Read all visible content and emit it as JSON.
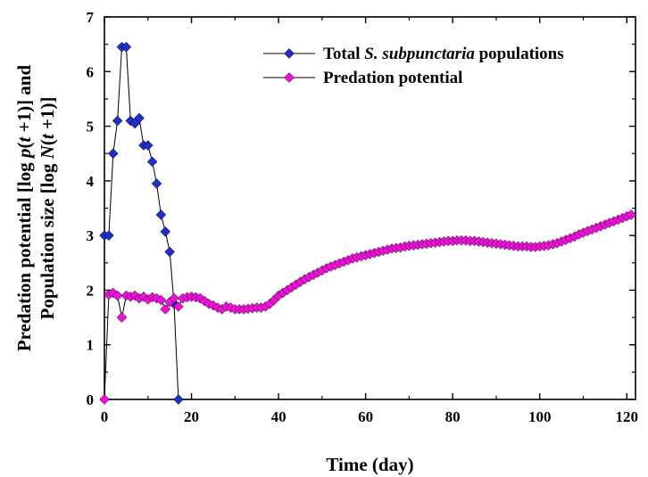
{
  "chart_data": {
    "type": "line",
    "xlabel": "Time (day)",
    "ylabel_line1": [
      "Predation potential [log ",
      "p",
      "(",
      "t",
      " +1)] and"
    ],
    "ylabel_line2": [
      "Population size [log ",
      "N",
      "(",
      "t",
      " +1)]"
    ],
    "xlim": [
      0,
      122
    ],
    "ylim": [
      0,
      7
    ],
    "x_ticks": [
      0,
      20,
      40,
      60,
      80,
      100,
      120
    ],
    "y_ticks": [
      0,
      1,
      2,
      3,
      4,
      5,
      6,
      7
    ],
    "grid": false,
    "legend_position": "top-right",
    "series": [
      {
        "name_parts": [
          "Total ",
          "S. subpunctaria",
          " populations"
        ],
        "color": "#1e2ec8",
        "marker": "diamond",
        "x": [
          0,
          1,
          2,
          3,
          4,
          5,
          6,
          7,
          8,
          9,
          10,
          11,
          12,
          13,
          14,
          15,
          16,
          17
        ],
        "y": [
          3.0,
          3.0,
          4.5,
          5.1,
          6.45,
          6.45,
          5.1,
          5.05,
          5.15,
          4.65,
          4.65,
          4.35,
          3.95,
          3.38,
          3.07,
          2.7,
          1.75,
          0.0
        ]
      },
      {
        "name": "Predation potential",
        "color": "#ee10d8",
        "marker": "diamond",
        "x": [
          0,
          1,
          2,
          3,
          4,
          5,
          6,
          7,
          8,
          9,
          10,
          11,
          12,
          13,
          14,
          15,
          16,
          17,
          18,
          19,
          20,
          21,
          22,
          23,
          24,
          25,
          26,
          27,
          28,
          29,
          30,
          31,
          32,
          33,
          34,
          35,
          36,
          37,
          38,
          39,
          40,
          41,
          42,
          43,
          44,
          45,
          46,
          47,
          48,
          49,
          50,
          51,
          52,
          53,
          54,
          55,
          56,
          57,
          58,
          59,
          60,
          61,
          62,
          63,
          64,
          65,
          66,
          67,
          68,
          69,
          70,
          71,
          72,
          73,
          74,
          75,
          76,
          77,
          78,
          79,
          80,
          81,
          82,
          83,
          84,
          85,
          86,
          87,
          88,
          89,
          90,
          91,
          92,
          93,
          94,
          95,
          96,
          97,
          98,
          99,
          100,
          101,
          102,
          103,
          104,
          105,
          106,
          107,
          108,
          109,
          110,
          111,
          112,
          113,
          114,
          115,
          116,
          117,
          118,
          119,
          120,
          121
        ],
        "y": [
          0.0,
          1.92,
          1.95,
          1.9,
          1.5,
          1.9,
          1.88,
          1.9,
          1.85,
          1.88,
          1.83,
          1.87,
          1.85,
          1.82,
          1.65,
          1.78,
          1.85,
          1.7,
          1.85,
          1.87,
          1.88,
          1.87,
          1.85,
          1.8,
          1.75,
          1.72,
          1.68,
          1.65,
          1.7,
          1.68,
          1.65,
          1.65,
          1.65,
          1.66,
          1.67,
          1.68,
          1.68,
          1.7,
          1.75,
          1.82,
          1.9,
          1.95,
          2.0,
          2.05,
          2.1,
          2.15,
          2.2,
          2.24,
          2.28,
          2.32,
          2.36,
          2.4,
          2.43,
          2.46,
          2.49,
          2.52,
          2.55,
          2.58,
          2.6,
          2.62,
          2.64,
          2.66,
          2.68,
          2.7,
          2.72,
          2.74,
          2.76,
          2.77,
          2.78,
          2.8,
          2.81,
          2.82,
          2.83,
          2.84,
          2.85,
          2.86,
          2.87,
          2.88,
          2.89,
          2.9,
          2.9,
          2.91,
          2.91,
          2.91,
          2.9,
          2.9,
          2.89,
          2.88,
          2.87,
          2.86,
          2.85,
          2.84,
          2.83,
          2.82,
          2.81,
          2.8,
          2.8,
          2.8,
          2.79,
          2.79,
          2.8,
          2.81,
          2.82,
          2.84,
          2.86,
          2.89,
          2.92,
          2.95,
          2.98,
          3.02,
          3.05,
          3.08,
          3.11,
          3.14,
          3.17,
          3.2,
          3.23,
          3.26,
          3.29,
          3.32,
          3.35,
          3.38
        ]
      }
    ]
  }
}
